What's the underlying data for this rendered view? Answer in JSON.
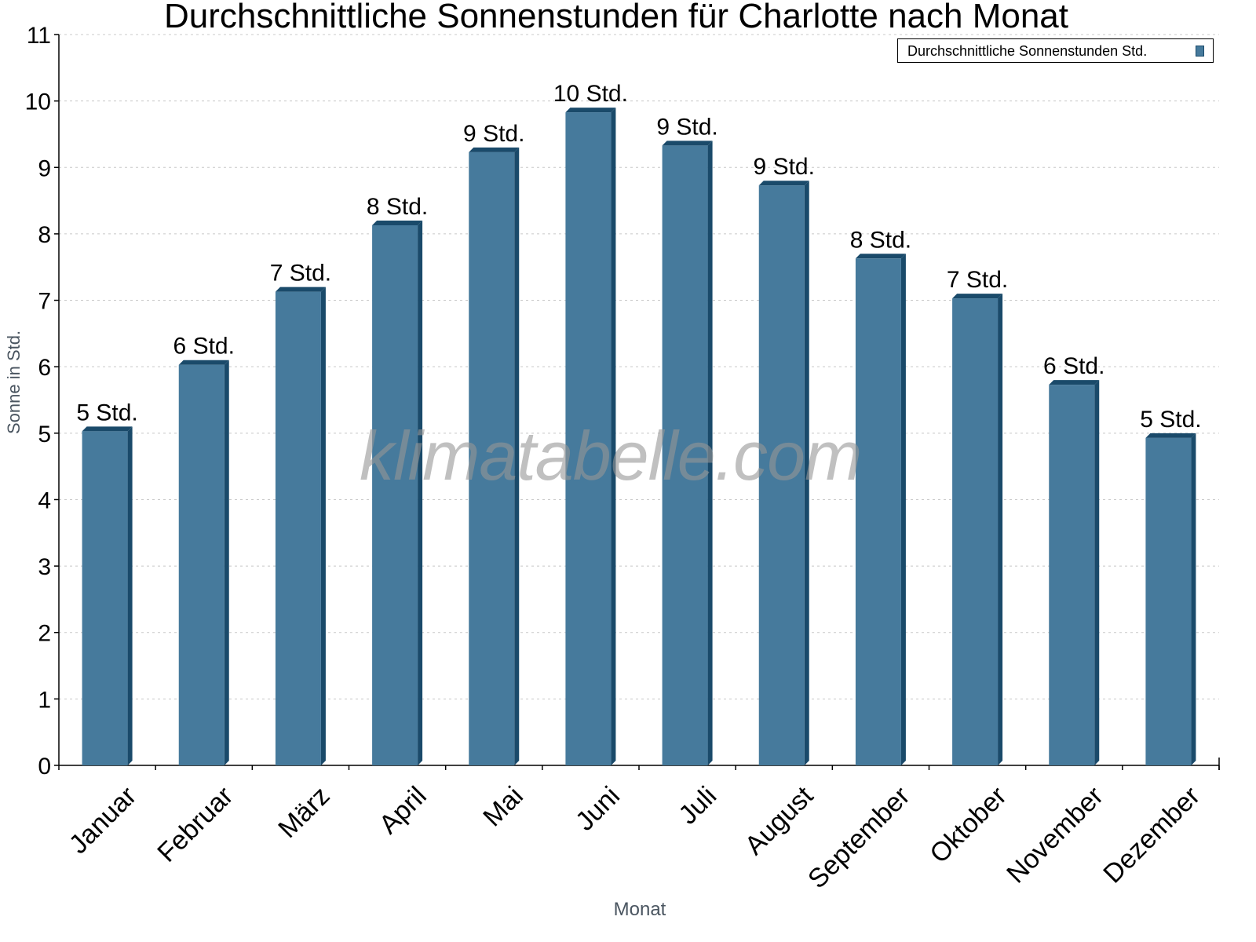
{
  "chart_data": {
    "type": "bar",
    "title": "Durchschnittliche Sonnenstunden für Charlotte nach Monat",
    "xlabel": "Monat",
    "ylabel": "Sonne in Std.",
    "ylim": [
      0,
      11
    ],
    "yticks": [
      0,
      1,
      2,
      3,
      4,
      5,
      6,
      7,
      8,
      9,
      10,
      11
    ],
    "grid": true,
    "legend_position": "top-right",
    "categories": [
      "Januar",
      "Februar",
      "März",
      "April",
      "Mai",
      "Juni",
      "Juli",
      "August",
      "September",
      "Oktober",
      "November",
      "Dezember"
    ],
    "series": [
      {
        "name": "Durchschnittliche Sonnenstunden Std.",
        "color": "#467a9c",
        "values": [
          5.1,
          6.1,
          7.2,
          8.2,
          9.3,
          9.9,
          9.4,
          8.8,
          7.7,
          7.1,
          5.8,
          5.0
        ],
        "data_labels": [
          "5 Std.",
          "6 Std.",
          "7 Std.",
          "8 Std.",
          "9 Std.",
          "10 Std.",
          "9 Std.",
          "9 Std.",
          "8 Std.",
          "7 Std.",
          "6 Std.",
          "5 Std."
        ]
      }
    ],
    "watermark": "klimatabelle.com"
  },
  "colors": {
    "bar_front": "#467a9c",
    "bar_side": "#1a4a6a",
    "grid": "#c8c8c8",
    "axis": "#000000",
    "axis_title": "#4a5560"
  }
}
